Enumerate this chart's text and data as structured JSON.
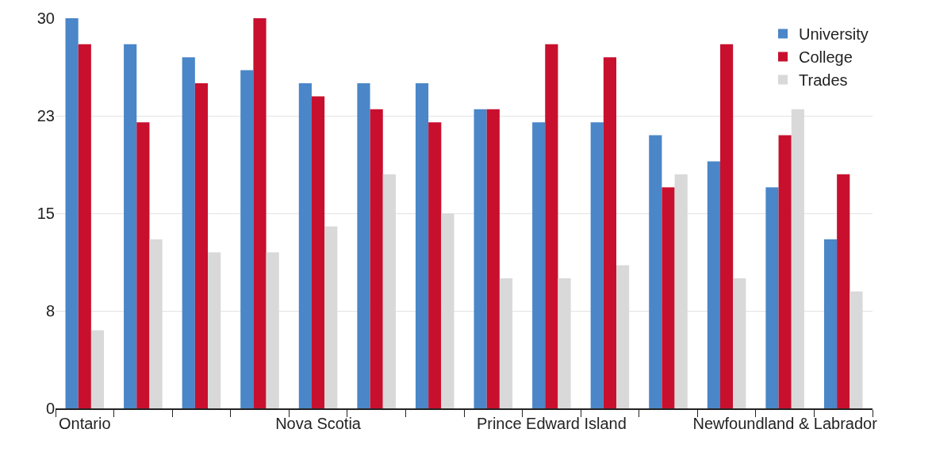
{
  "chart_data": {
    "type": "bar",
    "categories": [
      "Ontario",
      null,
      null,
      null,
      "Nova Scotia",
      null,
      null,
      null,
      "Prince Edward Island",
      null,
      null,
      null,
      "Newfoundland & Labrador",
      null
    ],
    "series": [
      {
        "name": "University",
        "color": "#4a86c8",
        "values": [
          30,
          28,
          27,
          26,
          25,
          25,
          25,
          23,
          22,
          22,
          21,
          19,
          17,
          13
        ]
      },
      {
        "name": "College",
        "color": "#c8102e",
        "values": [
          28,
          22,
          25,
          30,
          24,
          23,
          22,
          23,
          28,
          27,
          17,
          28,
          21,
          18
        ]
      },
      {
        "name": "Trades",
        "color": "#d9d9d9",
        "values": [
          6,
          13,
          12,
          12,
          14,
          18,
          15,
          10,
          10,
          11,
          18,
          10,
          23,
          9
        ]
      }
    ],
    "ylim": [
      0,
      30
    ],
    "yticks": [
      0,
      {
        "value": 7.5,
        "label": "8"
      },
      15,
      {
        "value": 22.5,
        "label": "23"
      },
      30
    ],
    "grid": "y",
    "legend": "top right"
  }
}
